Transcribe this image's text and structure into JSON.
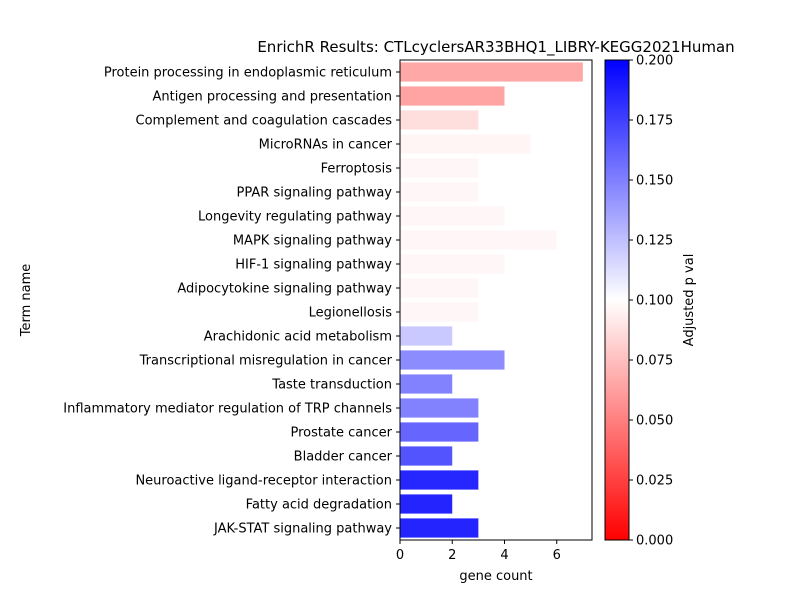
{
  "chart_data": {
    "type": "bar",
    "orientation": "horizontal",
    "title": "EnrichR Results: CTLcyclersAR33BHQ1_LIBRY-KEGG2021Human",
    "xlabel": "gene count",
    "ylabel": "Term name",
    "xlim": [
      0,
      7.35
    ],
    "x_ticks": [
      0,
      2,
      4,
      6
    ],
    "categories": [
      "Protein processing in endoplasmic reticulum",
      "Antigen processing and presentation",
      "Complement and coagulation cascades",
      "MicroRNAs in cancer",
      "Ferroptosis",
      "PPAR signaling pathway",
      "Longevity regulating pathway",
      "MAPK signaling pathway",
      "HIF-1 signaling pathway",
      "Adipocytokine signaling pathway",
      "Legionellosis",
      "Arachidonic acid metabolism",
      "Transcriptional misregulation in cancer",
      "Taste transduction",
      "Inflammatory mediator regulation of TRP channels",
      "Prostate cancer",
      "Bladder cancer",
      "Neuroactive ligand-receptor interaction",
      "Fatty acid degradation",
      "JAK-STAT signaling pathway"
    ],
    "values": [
      7,
      4,
      3,
      5,
      3,
      3,
      4,
      6,
      4,
      3,
      3,
      2,
      4,
      2,
      3,
      3,
      2,
      3,
      2,
      3
    ],
    "adjusted_p": [
      0.066,
      0.064,
      0.087,
      0.096,
      0.097,
      0.097,
      0.097,
      0.097,
      0.097,
      0.097,
      0.097,
      0.121,
      0.145,
      0.149,
      0.149,
      0.16,
      0.167,
      0.185,
      0.186,
      0.186
    ],
    "colorbar": {
      "label": "Adjusted p val",
      "range": [
        0,
        0.2
      ],
      "ticks": [
        "0.000",
        "0.025",
        "0.050",
        "0.075",
        "0.100",
        "0.125",
        "0.150",
        "0.175",
        "0.200"
      ],
      "colormap": "bwr_r",
      "colors": [
        "#ff0000",
        "#ffffff",
        "#0000ff"
      ]
    },
    "grid": false,
    "legend": "none"
  }
}
